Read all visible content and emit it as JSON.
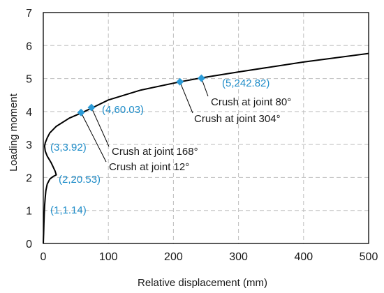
{
  "chart_data": {
    "type": "line",
    "title": "",
    "xlabel": "Relative displacement (mm)",
    "ylabel": "Loading moment",
    "xlim": [
      0,
      500
    ],
    "ylim": [
      0,
      7
    ],
    "xticks": [
      0,
      100,
      200,
      300,
      400,
      500
    ],
    "yticks": [
      0,
      1,
      2,
      3,
      4,
      5,
      6,
      7
    ],
    "grid": true,
    "grid_style": "dashed",
    "line_color": "#000000",
    "marker_color": "#2b9bd7",
    "label_color": "#1f8dc9",
    "series": [
      {
        "x": [
          0,
          0.5,
          1,
          1.5,
          2,
          3,
          4,
          6,
          10,
          15,
          18,
          20,
          18,
          12,
          6,
          3,
          2,
          3,
          6,
          10,
          20,
          40,
          60,
          74,
          100,
          150,
          210,
          243,
          300,
          400,
          500
        ],
        "y": [
          0,
          0.3,
          0.6,
          0.9,
          1.14,
          1.4,
          1.6,
          1.8,
          1.95,
          2.03,
          2.06,
          2.08,
          2.2,
          2.45,
          2.65,
          2.8,
          2.95,
          3.05,
          3.2,
          3.35,
          3.55,
          3.8,
          3.97,
          4.1,
          4.35,
          4.65,
          4.9,
          5.02,
          5.2,
          5.5,
          5.76
        ]
      }
    ],
    "markers": [
      {
        "x": 58,
        "y": 3.97
      },
      {
        "x": 74,
        "y": 4.12
      },
      {
        "x": 210,
        "y": 4.9
      },
      {
        "x": 243,
        "y": 5.01
      }
    ],
    "point_labels": [
      {
        "text": "(1,1.14)"
      },
      {
        "text": "(2,20.53)"
      },
      {
        "text": "(3,3.92)"
      },
      {
        "text": "(4,60.03)"
      },
      {
        "text": "(5,242.82)"
      }
    ],
    "annotations": [
      {
        "text": "Crush at joint 80°"
      },
      {
        "text": "Crush at joint 304°"
      },
      {
        "text": "Crush at joint 168°"
      },
      {
        "text": "Crush at joint 12°"
      }
    ]
  }
}
